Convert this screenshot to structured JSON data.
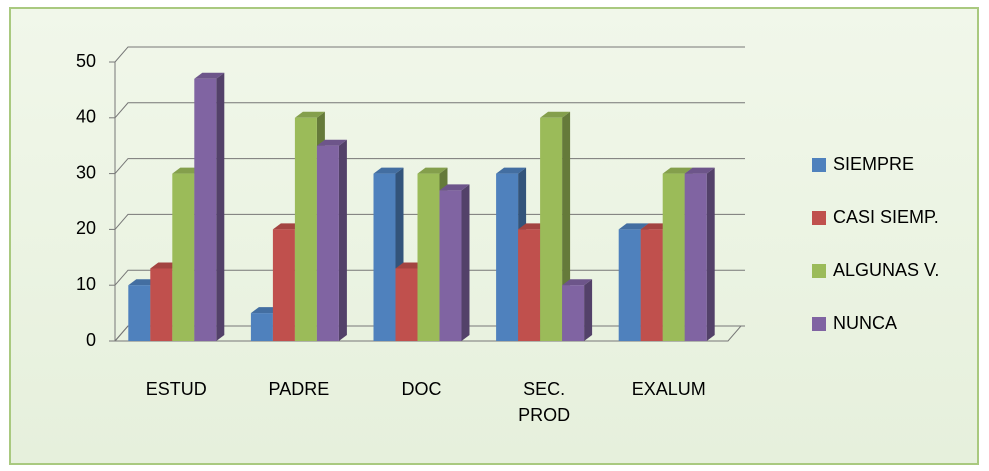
{
  "chart_data": {
    "type": "bar3d",
    "categories": [
      "ESTUD",
      "PADRE",
      "DOC",
      "SEC. PROD",
      "EXALUM"
    ],
    "series": [
      {
        "name": "SIEMPRE",
        "color": "#4f81bd",
        "values": [
          10,
          5,
          30,
          30,
          20
        ]
      },
      {
        "name": "CASI SIEMP.",
        "color": "#c0504d",
        "values": [
          13,
          20,
          13,
          20,
          20
        ]
      },
      {
        "name": "ALGUNAS V.",
        "color": "#9bbb59",
        "values": [
          30,
          40,
          30,
          40,
          30
        ]
      },
      {
        "name": "NUNCA",
        "color": "#8064a2",
        "values": [
          47,
          35,
          27,
          10,
          30
        ]
      }
    ],
    "ylim": [
      0,
      50
    ],
    "yticks": [
      0,
      10,
      20,
      30,
      40,
      50
    ],
    "grid": true,
    "legend": "right"
  }
}
